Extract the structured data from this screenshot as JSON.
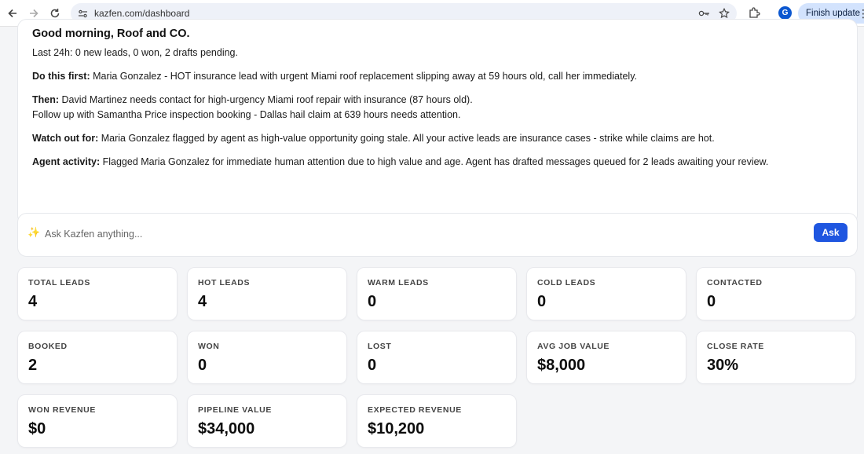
{
  "browser": {
    "url": "kazfen.com/dashboard",
    "profile_initial": "G",
    "update_label": "Finish update"
  },
  "briefing": {
    "greeting": "Good morning, Roof and CO.",
    "last24h": "Last 24h: 0 new leads, 0 won, 2 drafts pending.",
    "first_label": "Do this first:",
    "first_text": " Maria Gonzalez - HOT insurance lead with urgent Miami roof replacement slipping away at 59 hours old, call her immediately.",
    "then_label": "Then:",
    "then_text": " David Martinez needs contact for high-urgency Miami roof repair with insurance (87 hours old).",
    "then_followup": "Follow up with Samantha Price inspection booking - Dallas hail claim at 639 hours needs attention.",
    "watch_label": "Watch out for:",
    "watch_text": " Maria Gonzalez flagged by agent as high-value opportunity going stale. All your active leads are insurance cases - strike while claims are hot.",
    "agent_label": "Agent activity:",
    "agent_text": " Flagged Maria Gonzalez for immediate human attention due to high value and age. Agent has drafted messages queued for 2 leads awaiting your review."
  },
  "ask": {
    "placeholder": "Ask Kazfen anything...",
    "button_label": "Ask"
  },
  "stats": [
    {
      "label": "TOTAL LEADS",
      "value": "4"
    },
    {
      "label": "HOT LEADS",
      "value": "4"
    },
    {
      "label": "WARM LEADS",
      "value": "0"
    },
    {
      "label": "COLD LEADS",
      "value": "0"
    },
    {
      "label": "CONTACTED",
      "value": "0"
    },
    {
      "label": "BOOKED",
      "value": "2"
    },
    {
      "label": "WON",
      "value": "0"
    },
    {
      "label": "LOST",
      "value": "0"
    },
    {
      "label": "AVG JOB VALUE",
      "value": "$8,000"
    },
    {
      "label": "CLOSE RATE",
      "value": "30%"
    },
    {
      "label": "WON REVENUE",
      "value": "$0"
    },
    {
      "label": "PIPELINE VALUE",
      "value": "$34,000"
    },
    {
      "label": "EXPECTED REVENUE",
      "value": "$10,200"
    }
  ]
}
